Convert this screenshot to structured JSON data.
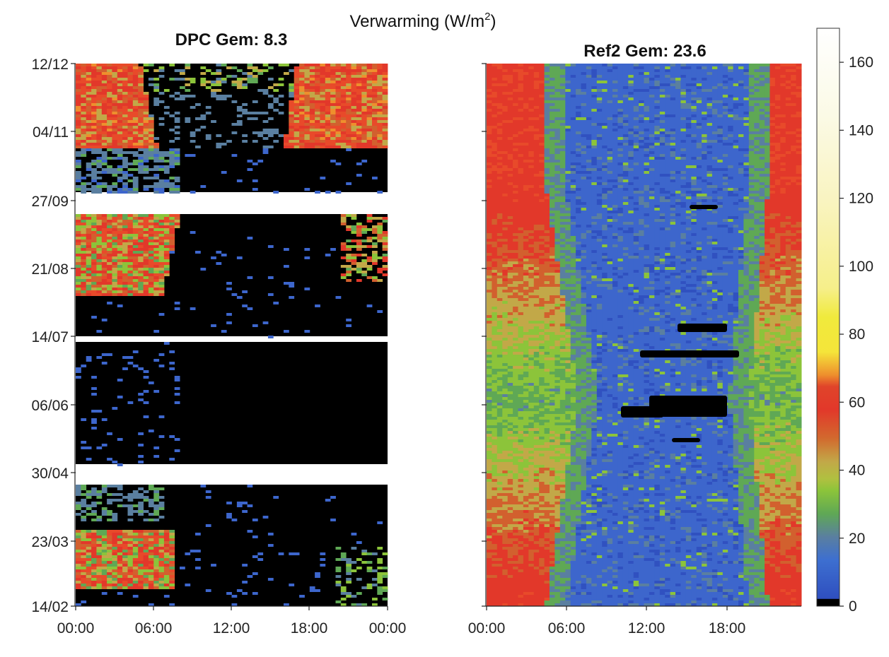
{
  "figure": {
    "supertitle_main": "Verwarming (W/m",
    "supertitle_exp": "2",
    "supertitle_close": ")"
  },
  "chart_data": [
    {
      "type": "heatmap",
      "title": "DPC Gem: 8.3",
      "x_ticks": [
        "00:00",
        "06:00",
        "12:00",
        "18:00",
        "00:00"
      ],
      "xlim_hours": [
        0,
        24
      ],
      "y_ticks": [
        "12/12",
        "04/11",
        "27/09",
        "21/08",
        "14/07",
        "06/06",
        "30/04",
        "23/03",
        "14/02"
      ],
      "y_order": "14/02 at bottom, 12/12 at top",
      "gaps_between": [
        [
          "04/11",
          "27/09"
        ],
        [
          "21/08",
          "14/07"
        ],
        [
          "06/06",
          "30/04"
        ]
      ],
      "mean_value": 8.3,
      "pattern": "Heating mostly zero (black) during the day; moderate heating (20-60 W/m2) in night/morning hours during autumn/winter and spring; almost no heating in May-July."
    },
    {
      "type": "heatmap",
      "title": "Ref2 Gem: 23.6",
      "x_ticks": [
        "00:00",
        "06:00",
        "12:00",
        "18:00"
      ],
      "xlim_hours": [
        0,
        24
      ],
      "y_ticks": [
        "12/12",
        "04/11",
        "27/09",
        "21/08",
        "14/07",
        "06/06",
        "30/04",
        "23/03",
        "14/02"
      ],
      "y_tick_labels_shown": false,
      "mean_value": 23.6,
      "pattern": "Higher heating (30-50 W/m2) at night, lower (5-20 W/m2) during the day, continuous over the whole period; daytime low zone widest in summer."
    }
  ],
  "colorbar": {
    "ticks": [
      "0",
      "20",
      "40",
      "60",
      "80",
      "100",
      "120",
      "140",
      "160"
    ],
    "range": [
      0,
      170
    ],
    "colors": [
      "#000000",
      "#2f4fbf",
      "#3d6fd0",
      "#5a7fa0",
      "#5fa855",
      "#8cc43a",
      "#c2a848",
      "#d26a2e",
      "#e2382a",
      "#ee8f2d",
      "#f5e53a",
      "#f6ef8a",
      "#fbfae6",
      "#ffffff"
    ]
  }
}
